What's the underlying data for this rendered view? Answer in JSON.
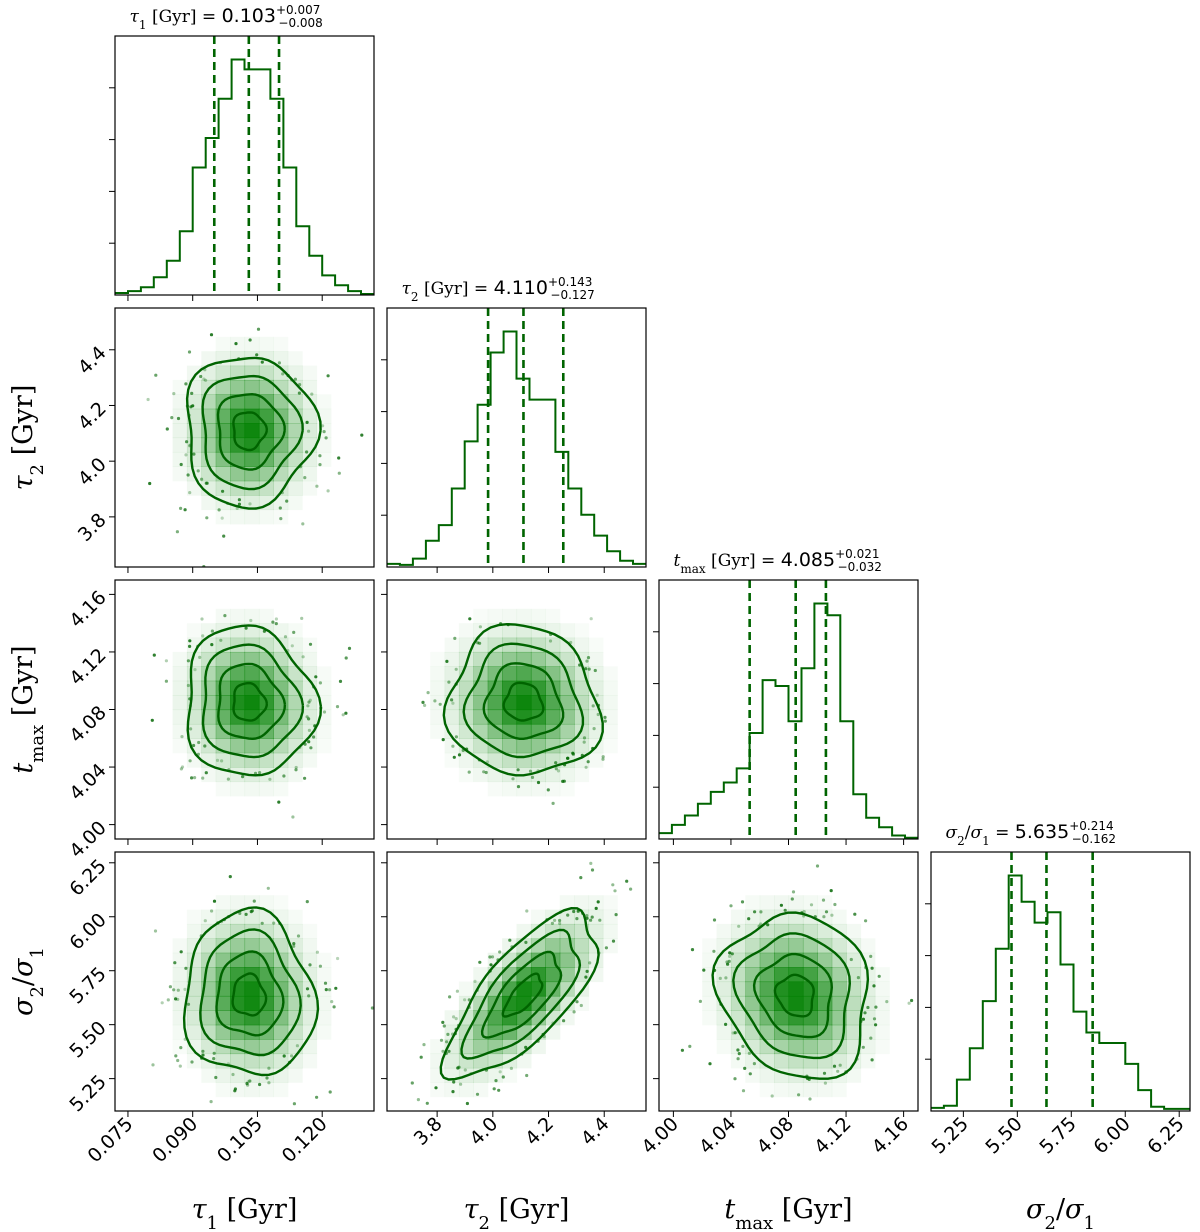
{
  "chart_data": {
    "type": "corner",
    "color": "#006400",
    "fill_color": "#008000",
    "contour_levels": 4,
    "parameters": [
      {
        "key": "tau1",
        "symbol": "τ",
        "sub": "1",
        "unit": "[Gyr]",
        "axis_label": "τ1  [Gyr]",
        "range": [
          0.072,
          0.132
        ],
        "ticks": [
          0.075,
          0.09,
          0.105,
          0.12
        ],
        "tick_labels": [
          "0.075",
          "0.090",
          "0.105",
          "0.120"
        ],
        "median": 0.103,
        "plus": "+0.007",
        "minus": "−0.008",
        "title_value": "0.103",
        "quantiles": [
          0.095,
          0.103,
          0.11
        ],
        "sigma": 0.0075,
        "hist": [
          0.2,
          0.4,
          0.8,
          1.8,
          3.5,
          6.5,
          13.0,
          16.0,
          20.0,
          24.0,
          23.0,
          23.0,
          20.0,
          13.0,
          7.0,
          4.0,
          2.0,
          1.0,
          0.4,
          0.1
        ]
      },
      {
        "key": "tau2",
        "symbol": "τ",
        "sub": "2",
        "unit": "[Gyr]",
        "axis_label": "τ2  [Gyr]",
        "range": [
          3.62,
          4.55
        ],
        "ticks": [
          3.8,
          4.0,
          4.2,
          4.4
        ],
        "tick_labels": [
          "3.8",
          "4.0",
          "4.2",
          "4.4"
        ],
        "median": 4.11,
        "plus": "+0.143",
        "minus": "−0.127",
        "title_value": "4.110",
        "quantiles": [
          3.983,
          4.11,
          4.253
        ],
        "sigma": 0.135,
        "hist": [
          0.3,
          0.2,
          0.8,
          2.5,
          4.0,
          7.5,
          12.0,
          15.5,
          20.5,
          22.5,
          18.0,
          16.0,
          16.0,
          11.0,
          7.5,
          5.0,
          3.0,
          1.5,
          0.6,
          0.3
        ]
      },
      {
        "key": "tmax",
        "symbol": "t",
        "sub": "max",
        "unit": "[Gyr]",
        "axis_label": "tmax  [Gyr]",
        "range": [
          3.99,
          4.17
        ],
        "ticks": [
          4.0,
          4.04,
          4.08,
          4.12,
          4.16
        ],
        "tick_labels": [
          "4.00",
          "4.04",
          "4.08",
          "4.12",
          "4.16"
        ],
        "median": 4.085,
        "plus": "+0.021",
        "minus": "−0.032",
        "title_value": "4.085",
        "quantiles": [
          4.053,
          4.085,
          4.106
        ],
        "sigma": 0.026,
        "hist": [
          0.5,
          1.2,
          2.0,
          3.0,
          4.0,
          4.8,
          6.0,
          9.0,
          13.5,
          13.0,
          10.0,
          14.5,
          20.0,
          19.0,
          10.0,
          3.8,
          1.8,
          1.0,
          0.3,
          0.1
        ]
      },
      {
        "key": "sigma_ratio",
        "symbol": "σ",
        "sub": "2",
        "unit": "",
        "axis_label": "σ2/σ1",
        "range": [
          5.1,
          6.3
        ],
        "ticks": [
          5.25,
          5.5,
          5.75,
          6.0,
          6.25
        ],
        "tick_labels": [
          "5.25",
          "5.50",
          "5.75",
          "6.00",
          "6.25"
        ],
        "median": 5.635,
        "plus": "+0.214",
        "minus": "−0.162",
        "title_value": "5.635",
        "quantiles": [
          5.473,
          5.635,
          5.849
        ],
        "sigma": 0.19,
        "hist": [
          0.3,
          0.5,
          3.0,
          6.0,
          10.5,
          15.5,
          22.5,
          20.0,
          18.0,
          19.0,
          14.0,
          9.5,
          7.5,
          6.5,
          6.5,
          4.5,
          2.0,
          0.4,
          0.2,
          0.2
        ]
      }
    ],
    "correlations": [
      [
        0,
        1,
        0.0
      ],
      [
        0,
        2,
        -0.05
      ],
      [
        1,
        2,
        -0.05
      ],
      [
        0,
        3,
        -0.05
      ],
      [
        1,
        3,
        0.72
      ],
      [
        2,
        3,
        -0.12
      ]
    ]
  }
}
